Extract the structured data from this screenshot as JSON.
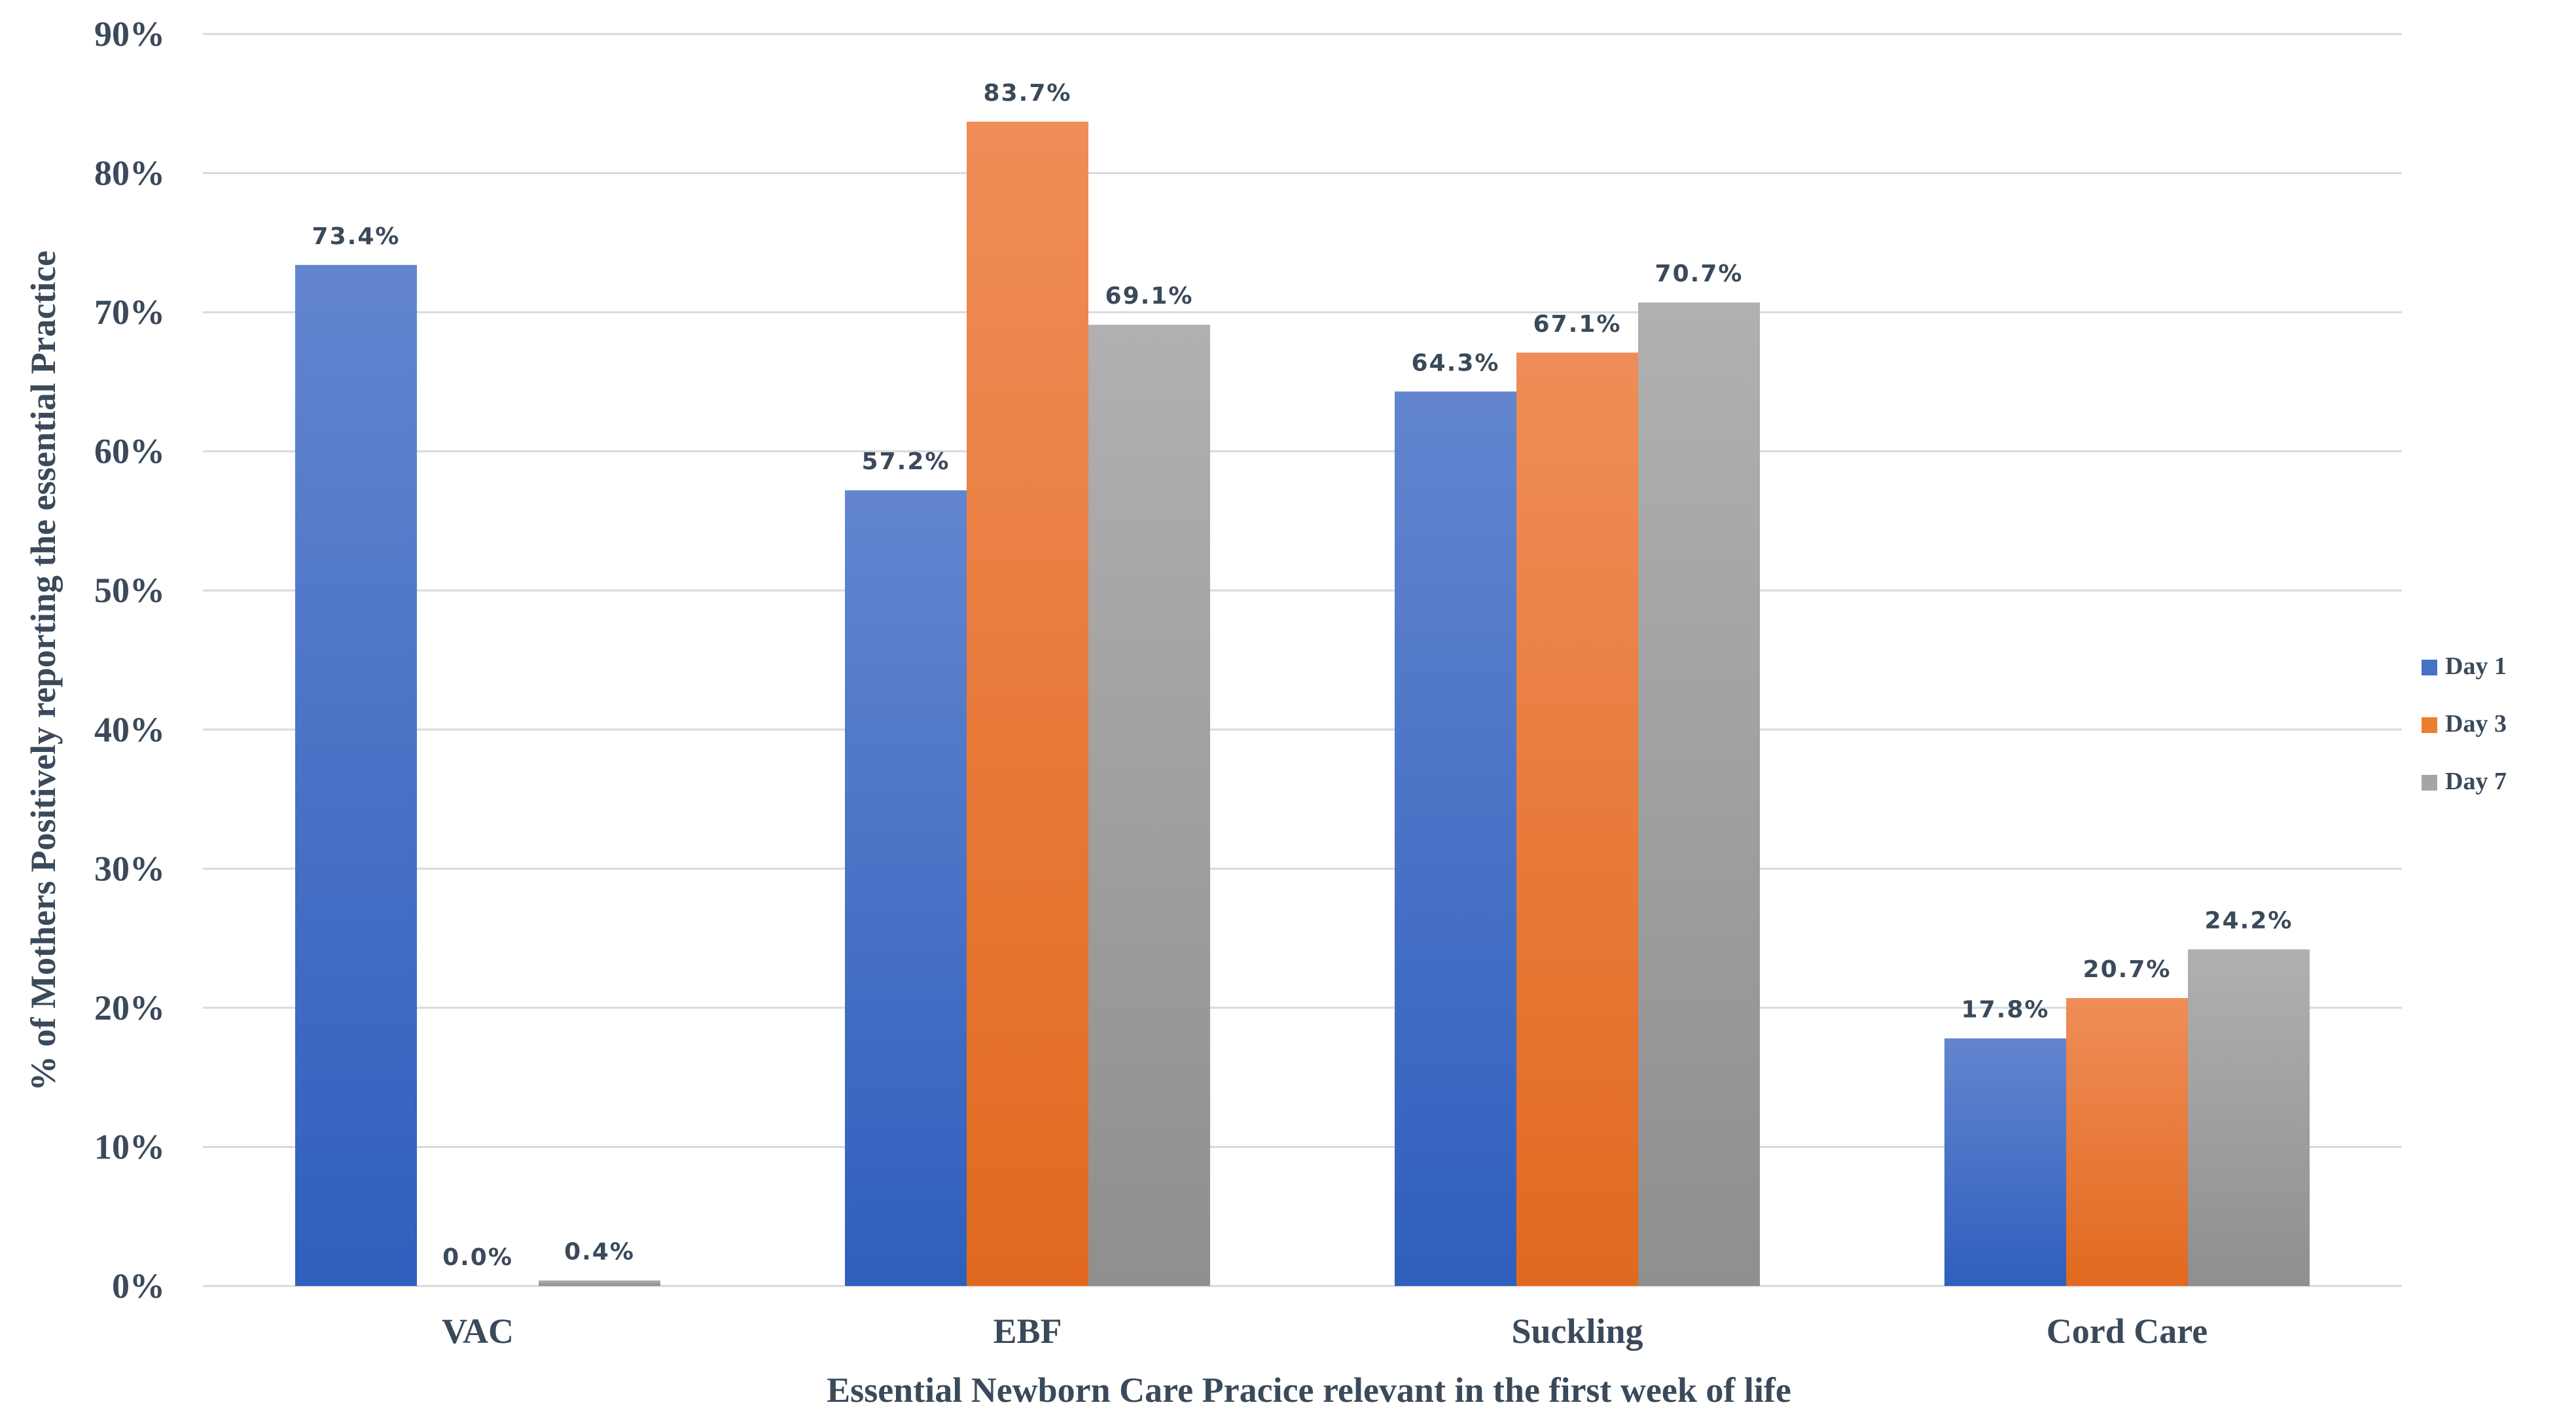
{
  "chart_data": {
    "type": "bar",
    "title": "",
    "xlabel": "Essential Newborn Care Pracice relevant in the first week of life",
    "ylabel": "% of Mothers Positively reporting  the essential Practice",
    "ylim": [
      0,
      90
    ],
    "yticks": [
      0,
      10,
      20,
      30,
      40,
      50,
      60,
      70,
      80,
      90
    ],
    "ytick_labels": [
      "0%",
      "10%",
      "20%",
      "30%",
      "40%",
      "50%",
      "60%",
      "70%",
      "80%",
      "90%"
    ],
    "grid": true,
    "legend_position": "right",
    "categories": [
      "VAC",
      "EBF",
      "Suckling",
      "Cord Care"
    ],
    "series": [
      {
        "name": "Day 1",
        "color_top": "#6385cf",
        "color_bottom": "#2f5fbd",
        "legend_color": "#4472c4",
        "values": [
          73.4,
          57.2,
          64.3,
          17.8
        ],
        "labels": [
          "73.4%",
          "57.2%",
          "64.3%",
          "17.8%"
        ]
      },
      {
        "name": "Day 3",
        "color_top": "#ef8d58",
        "color_bottom": "#e1691f",
        "legend_color": "#ed7d31",
        "values": [
          0.0,
          83.7,
          67.1,
          20.7
        ],
        "labels": [
          "0.0%",
          "83.7%",
          "67.1%",
          "20.7%"
        ]
      },
      {
        "name": "Day 7",
        "color_top": "#b0b0b0",
        "color_bottom": "#8f8f8f",
        "legend_color": "#a5a5a5",
        "values": [
          0.4,
          69.1,
          70.7,
          24.2
        ],
        "labels": [
          "0.4%",
          "69.1%",
          "70.7%",
          "24.2%"
        ]
      }
    ]
  }
}
